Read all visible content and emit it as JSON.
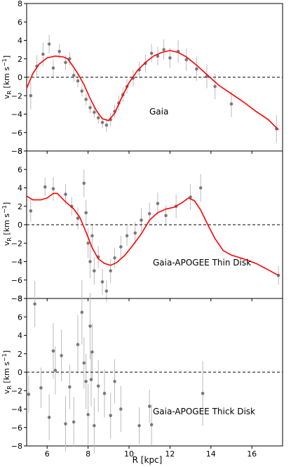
{
  "figure": {
    "xlabel": "R [kpc]",
    "ylabel_main": "v",
    "ylabel_sub": "R",
    "ylabel_unit": " [km s",
    "ylabel_exp": "−1",
    "ylabel_close": "]"
  },
  "colors": {
    "fit": "#ff0000",
    "points": "#555555",
    "errorbars": "#bbbbbb",
    "zero": "#000000"
  },
  "chart_data": [
    {
      "type": "scatter",
      "title": "Gaia",
      "xlim": [
        5,
        17.5
      ],
      "ylim": [
        -8,
        8
      ],
      "xticks": [
        6,
        8,
        10,
        12,
        14,
        16
      ],
      "yticks": [
        -8,
        -6,
        -4,
        -2,
        0,
        2,
        4,
        6,
        8
      ],
      "grid": false,
      "reference_line": 0,
      "fit_curve": {
        "x": [
          5.0,
          5.3,
          5.6,
          6.0,
          6.4,
          6.8,
          7.0,
          7.2,
          7.5,
          7.8,
          8.1,
          8.4,
          8.7,
          9.0,
          9.3,
          9.6,
          10.0,
          10.4,
          10.8,
          11.2,
          11.6,
          12.0,
          12.4,
          12.8,
          13.3,
          13.8,
          14.4,
          15.0,
          15.6,
          16.2,
          16.8,
          17.3
        ],
        "y": [
          -1.2,
          0.4,
          1.4,
          2.1,
          2.3,
          2.2,
          2.0,
          1.4,
          0.4,
          -0.8,
          -2.3,
          -3.6,
          -4.5,
          -4.7,
          -3.9,
          -2.4,
          -0.6,
          0.7,
          1.6,
          2.3,
          2.7,
          2.9,
          2.7,
          2.2,
          1.3,
          0.3,
          -0.9,
          -1.8,
          -2.7,
          -3.7,
          -4.6,
          -5.7
        ]
      },
      "points": [
        {
          "x": 5.2,
          "y": -2.0,
          "err": 1.5
        },
        {
          "x": 5.5,
          "y": 1.2,
          "err": 1.2
        },
        {
          "x": 5.8,
          "y": 2.5,
          "err": 1.3
        },
        {
          "x": 6.1,
          "y": 3.6,
          "err": 1.0
        },
        {
          "x": 6.3,
          "y": 1.0,
          "err": 0.9
        },
        {
          "x": 6.6,
          "y": 2.8,
          "err": 0.8
        },
        {
          "x": 6.9,
          "y": 1.6,
          "err": 0.8
        },
        {
          "x": 7.1,
          "y": 2.0,
          "err": 0.7
        },
        {
          "x": 7.3,
          "y": 0.2,
          "err": 0.7
        },
        {
          "x": 7.5,
          "y": -0.4,
          "err": 0.7
        },
        {
          "x": 7.7,
          "y": -1.5,
          "err": 0.6
        },
        {
          "x": 7.9,
          "y": -2.4,
          "err": 0.6
        },
        {
          "x": 8.1,
          "y": -3.3,
          "err": 0.6
        },
        {
          "x": 8.3,
          "y": -3.8,
          "err": 0.6
        },
        {
          "x": 8.5,
          "y": -4.4,
          "err": 0.6
        },
        {
          "x": 8.7,
          "y": -4.9,
          "err": 0.6
        },
        {
          "x": 8.9,
          "y": -5.2,
          "err": 0.7
        },
        {
          "x": 9.1,
          "y": -4.6,
          "err": 0.7
        },
        {
          "x": 9.3,
          "y": -3.7,
          "err": 0.7
        },
        {
          "x": 9.5,
          "y": -2.8,
          "err": 0.8
        },
        {
          "x": 9.7,
          "y": -1.9,
          "err": 0.8
        },
        {
          "x": 9.9,
          "y": -1.0,
          "err": 0.8
        },
        {
          "x": 10.2,
          "y": -0.1,
          "err": 0.9
        },
        {
          "x": 10.5,
          "y": 0.8,
          "err": 0.9
        },
        {
          "x": 10.8,
          "y": 1.5,
          "err": 1.0
        },
        {
          "x": 11.1,
          "y": 2.6,
          "err": 1.0
        },
        {
          "x": 11.4,
          "y": 2.3,
          "err": 1.0
        },
        {
          "x": 11.7,
          "y": 3.0,
          "err": 1.1
        },
        {
          "x": 12.0,
          "y": 2.1,
          "err": 1.1
        },
        {
          "x": 12.4,
          "y": 2.8,
          "err": 1.2
        },
        {
          "x": 12.8,
          "y": 1.9,
          "err": 1.2
        },
        {
          "x": 13.3,
          "y": 0.9,
          "err": 1.3
        },
        {
          "x": 13.8,
          "y": 0.1,
          "err": 1.3
        },
        {
          "x": 14.2,
          "y": -1.0,
          "err": 1.4
        },
        {
          "x": 15.0,
          "y": -2.9,
          "err": 1.4
        },
        {
          "x": 17.2,
          "y": -5.6,
          "err": 1.5
        }
      ]
    },
    {
      "type": "scatter",
      "title": "Gaia-APOGEE Thin Disk",
      "xlim": [
        5,
        17.5
      ],
      "ylim": [
        -8,
        8
      ],
      "xticks": [
        6,
        8,
        10,
        12,
        14,
        16
      ],
      "yticks": [
        -8,
        -6,
        -4,
        -2,
        0,
        2,
        4,
        6,
        8
      ],
      "grid": false,
      "reference_line": 0,
      "fit_curve": {
        "x": [
          5.0,
          5.3,
          5.7,
          6.0,
          6.3,
          6.5,
          6.8,
          7.0,
          7.3,
          7.6,
          7.9,
          8.2,
          8.5,
          8.8,
          9.1,
          9.4,
          9.8,
          10.2,
          10.6,
          11.0,
          11.4,
          11.8,
          12.2,
          12.6,
          12.9,
          13.2,
          13.5,
          13.8,
          14.2,
          14.6,
          15.0,
          15.6,
          16.2,
          16.8,
          17.3
        ],
        "y": [
          3.1,
          2.7,
          2.7,
          2.9,
          3.4,
          3.4,
          2.7,
          2.3,
          1.7,
          0.8,
          -0.8,
          -2.5,
          -3.7,
          -4.2,
          -4.4,
          -4.1,
          -3.3,
          -2.2,
          -1.0,
          0.5,
          1.3,
          1.7,
          1.9,
          2.4,
          2.9,
          2.6,
          1.6,
          0.2,
          -1.5,
          -2.8,
          -3.3,
          -3.7,
          -4.2,
          -4.9,
          -5.5
        ]
      },
      "points": [
        {
          "x": 5.2,
          "y": 1.5,
          "err": 1.2
        },
        {
          "x": 5.9,
          "y": 4.1,
          "err": 1.0
        },
        {
          "x": 6.3,
          "y": 3.9,
          "err": 1.3
        },
        {
          "x": 6.9,
          "y": 3.3,
          "err": 1.1
        },
        {
          "x": 7.2,
          "y": 2.0,
          "err": 1.0
        },
        {
          "x": 7.5,
          "y": 0.7,
          "err": 1.2
        },
        {
          "x": 7.8,
          "y": 4.5,
          "err": 1.5
        },
        {
          "x": 7.9,
          "y": 1.3,
          "err": 1.4
        },
        {
          "x": 8.0,
          "y": -2.0,
          "err": 1.6
        },
        {
          "x": 8.1,
          "y": -4.0,
          "err": 1.8
        },
        {
          "x": 8.2,
          "y": -1.2,
          "err": 1.3
        },
        {
          "x": 8.3,
          "y": -5.0,
          "err": 1.5
        },
        {
          "x": 8.5,
          "y": -3.5,
          "err": 1.2
        },
        {
          "x": 8.7,
          "y": -6.2,
          "err": 1.4
        },
        {
          "x": 8.9,
          "y": -7.2,
          "err": 1.2
        },
        {
          "x": 9.1,
          "y": -5.0,
          "err": 1.3
        },
        {
          "x": 9.3,
          "y": -3.6,
          "err": 1.1
        },
        {
          "x": 9.6,
          "y": -2.4,
          "err": 1.2
        },
        {
          "x": 9.9,
          "y": -1.2,
          "err": 1.1
        },
        {
          "x": 10.3,
          "y": -0.9,
          "err": 1.2
        },
        {
          "x": 10.6,
          "y": 0.5,
          "err": 1.3
        },
        {
          "x": 11.0,
          "y": 1.2,
          "err": 1.2
        },
        {
          "x": 11.4,
          "y": 2.3,
          "err": 1.2
        },
        {
          "x": 11.8,
          "y": 1.0,
          "err": 1.1
        },
        {
          "x": 12.3,
          "y": 2.0,
          "err": 1.3
        },
        {
          "x": 13.0,
          "y": 3.0,
          "err": 1.4
        },
        {
          "x": 13.5,
          "y": 4.0,
          "err": 1.5
        },
        {
          "x": 17.3,
          "y": -5.5,
          "err": 1.0
        }
      ]
    },
    {
      "type": "scatter",
      "title": "Gaia-APOGEE Thick Disk",
      "xlim": [
        5,
        17.5
      ],
      "ylim": [
        -8,
        8
      ],
      "xticks": [
        6,
        8,
        10,
        12,
        14,
        16
      ],
      "yticks": [
        -8,
        -6,
        -4,
        -2,
        0,
        2,
        4,
        6,
        8
      ],
      "grid": false,
      "reference_line": 0,
      "points": [
        {
          "x": 5.1,
          "y": -2.4,
          "err": 2.0
        },
        {
          "x": 5.4,
          "y": 7.4,
          "err": 2.5
        },
        {
          "x": 5.7,
          "y": -1.7,
          "err": 2.2
        },
        {
          "x": 6.1,
          "y": -4.9,
          "err": 2.5
        },
        {
          "x": 6.3,
          "y": 2.3,
          "err": 3.0
        },
        {
          "x": 6.4,
          "y": 0.2,
          "err": 2.6
        },
        {
          "x": 6.7,
          "y": 1.8,
          "err": 2.8
        },
        {
          "x": 6.9,
          "y": -5.6,
          "err": 3.0
        },
        {
          "x": 7.1,
          "y": -1.6,
          "err": 2.4
        },
        {
          "x": 7.3,
          "y": -5.4,
          "err": 2.7
        },
        {
          "x": 7.5,
          "y": 3.0,
          "err": 3.2
        },
        {
          "x": 7.7,
          "y": 6.5,
          "err": 3.5
        },
        {
          "x": 7.8,
          "y": 1.0,
          "err": 2.8
        },
        {
          "x": 7.9,
          "y": -1.0,
          "err": 3.0
        },
        {
          "x": 8.0,
          "y": -4.6,
          "err": 3.3
        },
        {
          "x": 8.1,
          "y": 5.0,
          "err": 3.6
        },
        {
          "x": 8.15,
          "y": -0.8,
          "err": 2.9
        },
        {
          "x": 8.2,
          "y": 2.2,
          "err": 3.1
        },
        {
          "x": 8.3,
          "y": -5.8,
          "err": 3.0
        },
        {
          "x": 8.5,
          "y": -1.5,
          "err": 2.8
        },
        {
          "x": 8.8,
          "y": -2.3,
          "err": 2.6
        },
        {
          "x": 9.1,
          "y": -4.7,
          "err": 2.5
        },
        {
          "x": 9.3,
          "y": -1.0,
          "err": 2.4
        },
        {
          "x": 9.6,
          "y": -4.0,
          "err": 2.5
        },
        {
          "x": 10.5,
          "y": -5.8,
          "err": 2.0
        },
        {
          "x": 11.0,
          "y": -3.7,
          "err": 1.8
        },
        {
          "x": 11.1,
          "y": -5.7,
          "err": 2.2
        },
        {
          "x": 13.6,
          "y": -2.3,
          "err": 3.5
        }
      ]
    }
  ]
}
